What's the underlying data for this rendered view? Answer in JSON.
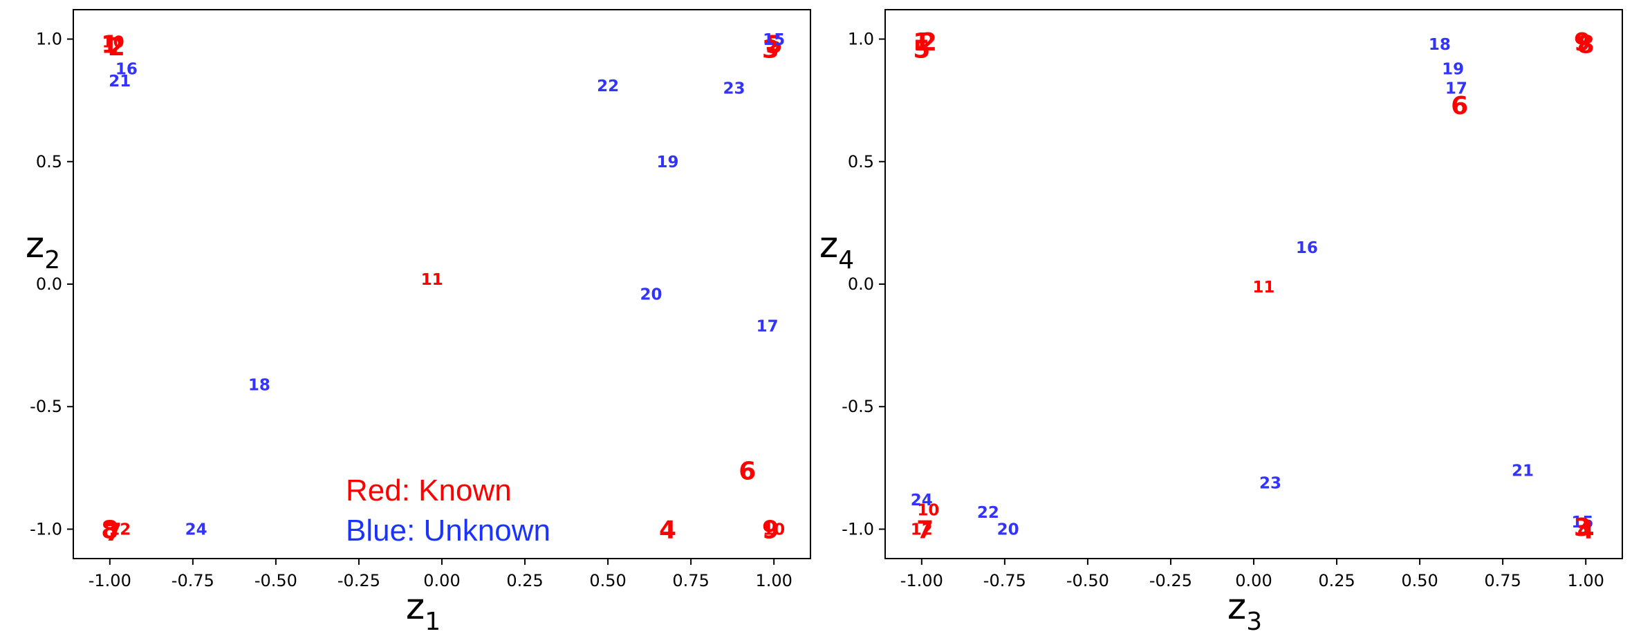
{
  "colors": {
    "known": "#ff0000",
    "unknown": "#3333ff",
    "legend_unknown": "#1a33ff"
  },
  "legend": {
    "known_label": "Red: Known",
    "unknown_label": "Blue: Unknown"
  },
  "chart_data": [
    {
      "type": "scatter",
      "title": "",
      "xlabel": "z",
      "xlabel_sub": "1",
      "ylabel": "z",
      "ylabel_sub": "2",
      "xlim": [
        -1.11,
        1.11
      ],
      "ylim": [
        -1.12,
        1.12
      ],
      "xticks": [
        -1.0,
        -0.75,
        -0.5,
        -0.25,
        0.0,
        0.25,
        0.5,
        0.75,
        1.0
      ],
      "xtick_labels": [
        "-1.00",
        "-0.75",
        "-0.50",
        "-0.25",
        "0.00",
        "0.25",
        "0.50",
        "0.75",
        "1.00"
      ],
      "yticks": [
        -1.0,
        -0.5,
        0.0,
        0.5,
        1.0
      ],
      "ytick_labels": [
        "-1.0",
        "-0.5",
        "0.0",
        "0.5",
        "1.0"
      ],
      "grid": false,
      "points": [
        {
          "label": "1",
          "x": -1.0,
          "y": 0.98,
          "group": "known",
          "size": "large"
        },
        {
          "label": "2",
          "x": -0.98,
          "y": 0.97,
          "group": "known",
          "size": "large"
        },
        {
          "label": "10",
          "x": -0.99,
          "y": 0.99,
          "group": "known",
          "size": "small"
        },
        {
          "label": "3",
          "x": 0.99,
          "y": 0.96,
          "group": "known",
          "size": "large"
        },
        {
          "label": "5",
          "x": 1.0,
          "y": 0.98,
          "group": "known",
          "size": "large"
        },
        {
          "label": "15",
          "x": 1.0,
          "y": 1.0,
          "group": "unknown",
          "size": "small"
        },
        {
          "label": "21",
          "x": -0.97,
          "y": 0.83,
          "group": "unknown",
          "size": "small"
        },
        {
          "label": "16",
          "x": -0.95,
          "y": 0.88,
          "group": "unknown",
          "size": "small"
        },
        {
          "label": "22",
          "x": 0.5,
          "y": 0.81,
          "group": "unknown",
          "size": "small"
        },
        {
          "label": "23",
          "x": 0.88,
          "y": 0.8,
          "group": "unknown",
          "size": "small"
        },
        {
          "label": "19",
          "x": 0.68,
          "y": 0.5,
          "group": "unknown",
          "size": "small"
        },
        {
          "label": "11",
          "x": -0.03,
          "y": 0.02,
          "group": "known",
          "size": "small"
        },
        {
          "label": "20",
          "x": 0.63,
          "y": -0.04,
          "group": "unknown",
          "size": "small"
        },
        {
          "label": "17",
          "x": 0.98,
          "y": -0.17,
          "group": "unknown",
          "size": "small"
        },
        {
          "label": "18",
          "x": -0.55,
          "y": -0.41,
          "group": "unknown",
          "size": "small"
        },
        {
          "label": "6",
          "x": 0.92,
          "y": -0.76,
          "group": "known",
          "size": "large"
        },
        {
          "label": "8",
          "x": -1.0,
          "y": -1.0,
          "group": "known",
          "size": "large"
        },
        {
          "label": "7",
          "x": -0.99,
          "y": -1.01,
          "group": "known",
          "size": "large"
        },
        {
          "label": "12",
          "x": -0.97,
          "y": -1.0,
          "group": "known",
          "size": "small"
        },
        {
          "label": "24",
          "x": -0.74,
          "y": -1.0,
          "group": "unknown",
          "size": "small"
        },
        {
          "label": "4",
          "x": 0.68,
          "y": -1.0,
          "group": "known",
          "size": "large"
        },
        {
          "label": "9",
          "x": 0.99,
          "y": -1.0,
          "group": "known",
          "size": "large"
        },
        {
          "label": "10",
          "x": 1.0,
          "y": -1.0,
          "group": "known",
          "size": "small"
        }
      ]
    },
    {
      "type": "scatter",
      "title": "",
      "xlabel": "z",
      "xlabel_sub": "3",
      "ylabel": "z",
      "ylabel_sub": "4",
      "xlim": [
        -1.11,
        1.11
      ],
      "ylim": [
        -1.12,
        1.12
      ],
      "xticks": [
        -1.0,
        -0.75,
        -0.5,
        -0.25,
        0.0,
        0.25,
        0.5,
        0.75,
        1.0
      ],
      "xtick_labels": [
        "-1.00",
        "-0.75",
        "-0.50",
        "-0.25",
        "0.00",
        "0.25",
        "0.50",
        "0.75",
        "1.00"
      ],
      "yticks": [
        -1.0,
        -0.5,
        0.0,
        0.5,
        1.0
      ],
      "ytick_labels": [
        "-1.0",
        "-0.5",
        "0.0",
        "0.5",
        "1.0"
      ],
      "grid": false,
      "points": [
        {
          "label": "1",
          "x": -1.0,
          "y": 0.99,
          "group": "known",
          "size": "large"
        },
        {
          "label": "5",
          "x": -1.0,
          "y": 0.96,
          "group": "known",
          "size": "large"
        },
        {
          "label": "2",
          "x": -0.98,
          "y": 0.99,
          "group": "known",
          "size": "large"
        },
        {
          "label": "18",
          "x": 0.56,
          "y": 0.98,
          "group": "unknown",
          "size": "small"
        },
        {
          "label": "9",
          "x": 0.99,
          "y": 0.99,
          "group": "known",
          "size": "large"
        },
        {
          "label": "8",
          "x": 1.0,
          "y": 0.98,
          "group": "known",
          "size": "large"
        },
        {
          "label": "19",
          "x": 0.6,
          "y": 0.88,
          "group": "unknown",
          "size": "small"
        },
        {
          "label": "17",
          "x": 0.61,
          "y": 0.8,
          "group": "unknown",
          "size": "small"
        },
        {
          "label": "6",
          "x": 0.62,
          "y": 0.73,
          "group": "known",
          "size": "large"
        },
        {
          "label": "16",
          "x": 0.16,
          "y": 0.15,
          "group": "unknown",
          "size": "small"
        },
        {
          "label": "11",
          "x": 0.03,
          "y": -0.01,
          "group": "known",
          "size": "small"
        },
        {
          "label": "21",
          "x": 0.81,
          "y": -0.76,
          "group": "unknown",
          "size": "small"
        },
        {
          "label": "23",
          "x": 0.05,
          "y": -0.81,
          "group": "unknown",
          "size": "small"
        },
        {
          "label": "24",
          "x": -1.0,
          "y": -0.88,
          "group": "unknown",
          "size": "small"
        },
        {
          "label": "10",
          "x": -0.98,
          "y": -0.92,
          "group": "known",
          "size": "small"
        },
        {
          "label": "22",
          "x": -0.8,
          "y": -0.93,
          "group": "unknown",
          "size": "small"
        },
        {
          "label": "20",
          "x": -0.74,
          "y": -1.0,
          "group": "unknown",
          "size": "small"
        },
        {
          "label": "12",
          "x": -1.0,
          "y": -1.0,
          "group": "known",
          "size": "small"
        },
        {
          "label": "7",
          "x": -0.99,
          "y": -1.0,
          "group": "known",
          "size": "large"
        },
        {
          "label": "15",
          "x": 0.99,
          "y": -0.97,
          "group": "unknown",
          "size": "small"
        },
        {
          "label": "4",
          "x": 1.0,
          "y": -1.0,
          "group": "known",
          "size": "large"
        },
        {
          "label": "3",
          "x": 0.99,
          "y": -0.99,
          "group": "known",
          "size": "large"
        }
      ]
    }
  ]
}
